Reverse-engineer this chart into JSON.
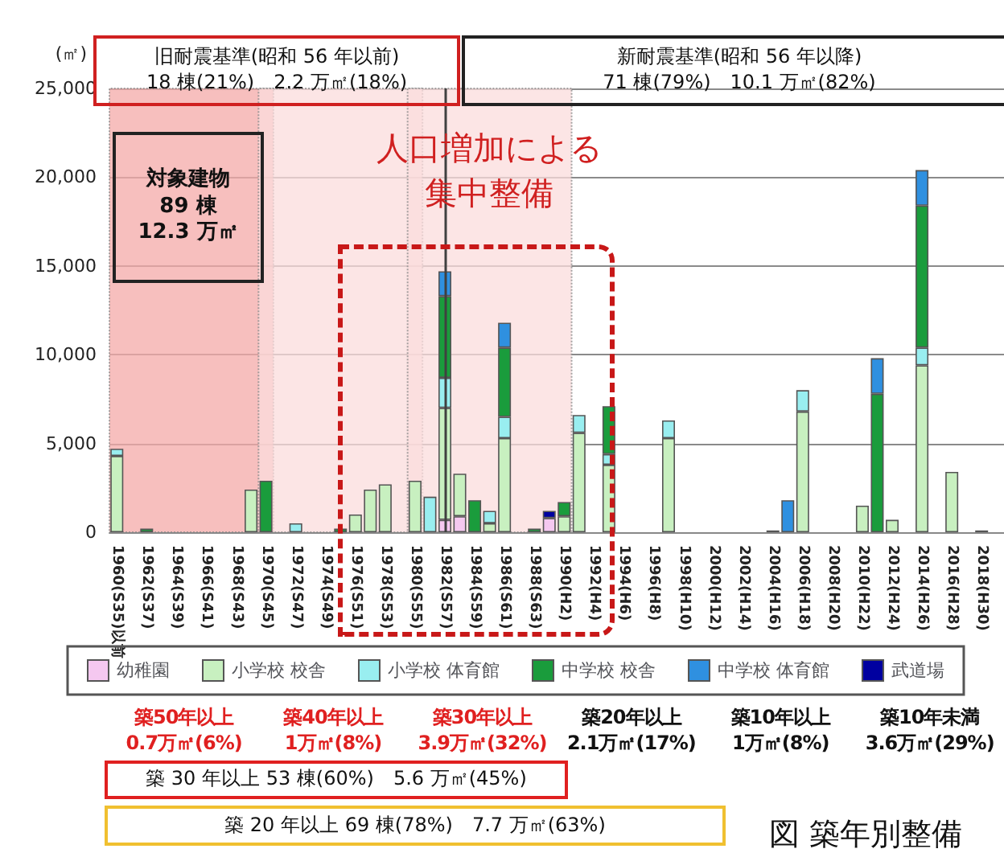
{
  "chart_data": {
    "type": "bar",
    "stacked": true,
    "ylabel": "(㎡)",
    "categories": [
      "1960(S35)以前",
      null,
      "1962(S37)",
      null,
      "1964(S39)",
      null,
      "1966(S41)",
      null,
      "1968(S43)",
      null,
      "1970(S45)",
      null,
      "1972(S47)",
      null,
      "1974(S49)",
      null,
      "1976(S51)",
      null,
      "1978(S53)",
      null,
      "1980(S55)",
      null,
      "1982(S57)",
      null,
      "1984(S59)",
      null,
      "1986(S61)",
      null,
      "1988(S63)",
      null,
      "1990(H2)",
      null,
      "1992(H4)",
      null,
      "1994(H6)",
      null,
      "1996(H8)",
      null,
      "1998(H10)",
      null,
      "2000(H12)",
      null,
      "2002(H14)",
      null,
      "2004(H16)",
      null,
      "2006(H18)",
      null,
      "2008(H20)",
      null,
      "2010(H22)",
      null,
      "2012(H24)",
      null,
      "2014(H26)",
      null,
      "2016(H28)",
      null,
      "2018(H30)",
      null
    ],
    "series": [
      {
        "name": "幼稚園",
        "color": "#f5c8f0",
        "values": [
          null,
          null,
          null,
          null,
          null,
          null,
          null,
          null,
          null,
          null,
          null,
          null,
          null,
          null,
          null,
          null,
          null,
          null,
          null,
          null,
          null,
          null,
          700,
          900,
          null,
          null,
          null,
          null,
          null,
          800,
          null,
          null,
          null,
          null,
          null,
          null,
          null,
          null,
          null,
          null,
          null,
          null,
          null,
          null,
          null,
          null,
          null,
          null,
          null,
          null,
          null,
          null,
          null,
          null,
          null,
          null,
          null,
          null,
          null,
          null
        ]
      },
      {
        "name": "小学校 校舎",
        "color": "#c8f0c0",
        "values": [
          4300,
          null,
          null,
          null,
          null,
          null,
          null,
          null,
          null,
          2400,
          null,
          null,
          null,
          null,
          null,
          null,
          1000,
          2400,
          2700,
          null,
          2900,
          null,
          6300,
          2400,
          null,
          500,
          5300,
          null,
          null,
          null,
          900,
          5600,
          null,
          3800,
          null,
          null,
          null,
          5300,
          null,
          null,
          null,
          null,
          null,
          null,
          100,
          null,
          6800,
          null,
          null,
          null,
          1500,
          null,
          700,
          null,
          9400,
          null,
          3400,
          null,
          100,
          null
        ]
      },
      {
        "name": "小学校 体育館",
        "color": "#99eef0",
        "values": [
          400,
          null,
          null,
          null,
          null,
          null,
          null,
          null,
          null,
          null,
          null,
          null,
          500,
          null,
          null,
          null,
          null,
          null,
          null,
          null,
          null,
          2000,
          1700,
          null,
          null,
          700,
          1200,
          null,
          null,
          null,
          null,
          1000,
          null,
          600,
          null,
          null,
          null,
          1000,
          null,
          null,
          null,
          null,
          null,
          null,
          null,
          null,
          1200,
          null,
          null,
          null,
          null,
          null,
          null,
          null,
          1000,
          null,
          null,
          null,
          null,
          null
        ]
      },
      {
        "name": "中学校 校舎",
        "color": "#1a9c3c",
        "values": [
          null,
          null,
          200,
          null,
          null,
          null,
          null,
          null,
          null,
          null,
          2900,
          null,
          null,
          null,
          null,
          200,
          null,
          null,
          null,
          null,
          null,
          null,
          4600,
          null,
          1800,
          null,
          3900,
          null,
          200,
          null,
          800,
          null,
          null,
          2700,
          null,
          null,
          null,
          null,
          null,
          null,
          null,
          null,
          null,
          null,
          null,
          null,
          null,
          null,
          null,
          null,
          null,
          7800,
          null,
          null,
          8000,
          null,
          null,
          null,
          null,
          null
        ]
      },
      {
        "name": "中学校 体育館",
        "color": "#2f90e0",
        "values": [
          null,
          null,
          null,
          null,
          null,
          null,
          null,
          null,
          null,
          null,
          null,
          null,
          null,
          null,
          null,
          null,
          null,
          null,
          null,
          null,
          null,
          null,
          1400,
          null,
          null,
          null,
          1400,
          null,
          null,
          null,
          null,
          null,
          null,
          null,
          null,
          null,
          null,
          null,
          null,
          null,
          null,
          null,
          null,
          null,
          null,
          1800,
          null,
          null,
          null,
          null,
          null,
          2000,
          null,
          null,
          2000,
          null,
          null,
          null,
          null,
          null
        ]
      },
      {
        "name": "武道場",
        "color": "#0000a0",
        "values": [
          null,
          null,
          null,
          null,
          null,
          null,
          null,
          null,
          null,
          null,
          null,
          null,
          null,
          null,
          null,
          null,
          null,
          null,
          null,
          null,
          null,
          null,
          null,
          null,
          null,
          null,
          null,
          null,
          null,
          400,
          null,
          null,
          null,
          null,
          null,
          null,
          null,
          null,
          null,
          null,
          null,
          null,
          null,
          null,
          null,
          null,
          null,
          null,
          null,
          null,
          null,
          null,
          null,
          null,
          null,
          null,
          null,
          null,
          null,
          null
        ]
      }
    ],
    "ylim": [
      0,
      25000
    ],
    "yticks": [
      0,
      {
        "value": 5000,
        "label": "5,000"
      },
      {
        "value": 10000,
        "label": "10,000"
      },
      {
        "value": 15000,
        "label": "15,000"
      },
      {
        "value": 20000,
        "label": "20,000"
      },
      {
        "value": 25000,
        "label": "25,000"
      }
    ],
    "grid": "y",
    "legend": "bottom",
    "ref_lines": [
      {
        "axis": "x",
        "value": "1982(S57)",
        "color": "#404040"
      }
    ],
    "bands": [
      {
        "axis": "x",
        "from": "1960(S35)以前",
        "to": "1970(S45)",
        "color": "#f4aaa8"
      },
      {
        "axis": "x",
        "from": "1970(S45)",
        "to": "1980(S55)",
        "color": "#fbdcdc"
      },
      {
        "axis": "x",
        "from": "1980(S55)",
        "to": "1990(H2)",
        "color": "#fbdcdc"
      }
    ],
    "annotations": [
      "旧耐震基準(昭和 56 年以前)\n18 棟(21%)　2.2 万㎡(18%)",
      "新耐震基準(昭和 56 年以降)\n71 棟(79%)　10.1 万㎡(82%)",
      "対象建物\n89 棟\n12.3 万㎡",
      "人口増加による",
      "集中整備",
      "築 30 年以上 53 棟(60%)　5.6 万㎡(45%)",
      "築 20 年以上 69 棟(78%)　7.7 万㎡(63%)",
      "図 築年別整備",
      "築50年以上\n0.7万㎡(6%)",
      "築40年以上\n1万㎡(8%)",
      "築30年以上\n3.9万㎡(32%)",
      "築20年以上\n2.1万㎡(17%)",
      "築10年以上\n1万㎡(8%)",
      "築10年未満\n3.6万㎡(29%)"
    ]
  }
}
